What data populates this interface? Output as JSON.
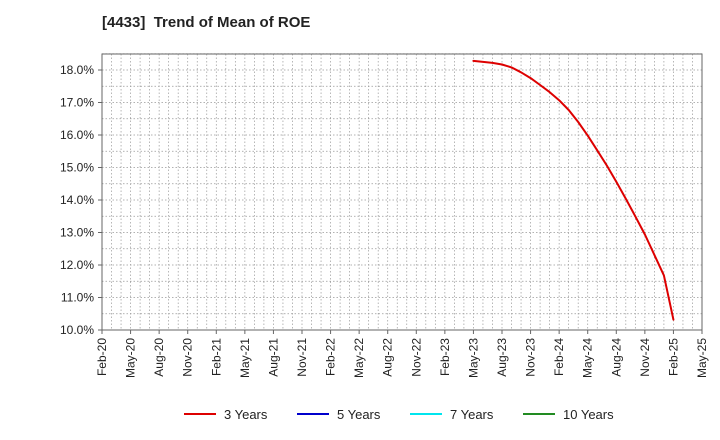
{
  "chart_data": {
    "type": "line",
    "title": "[4433]  Trend of Mean of ROE",
    "xlabel": "",
    "ylabel": "",
    "x_ticks": [
      "Feb-20",
      "May-20",
      "Aug-20",
      "Nov-20",
      "Feb-21",
      "May-21",
      "Aug-21",
      "Nov-21",
      "Feb-22",
      "May-22",
      "Aug-22",
      "Nov-22",
      "Feb-23",
      "May-23",
      "Aug-23",
      "Nov-23",
      "Feb-24",
      "May-24",
      "Aug-24",
      "Nov-24",
      "Feb-25",
      "May-25"
    ],
    "y_ticks": [
      "10.0%",
      "11.0%",
      "12.0%",
      "13.0%",
      "14.0%",
      "15.0%",
      "16.0%",
      "17.0%",
      "18.0%"
    ],
    "ylim": [
      10.0,
      18.5
    ],
    "grid": true,
    "legend_position": "bottom",
    "series": [
      {
        "name": "3 Years",
        "color": "#dd0000",
        "x": [
          "May-23",
          "Jun-23",
          "Jul-23",
          "Aug-23",
          "Sep-23",
          "Oct-23",
          "Nov-23",
          "Dec-23",
          "Jan-24",
          "Feb-24",
          "Mar-24",
          "Apr-24",
          "May-24",
          "Jun-24",
          "Jul-24",
          "Aug-24",
          "Sep-24",
          "Oct-24",
          "Nov-24",
          "Dec-24",
          "Jan-25",
          "Feb-25"
        ],
        "values": [
          18.28,
          18.25,
          18.22,
          18.17,
          18.08,
          17.93,
          17.75,
          17.54,
          17.32,
          17.07,
          16.77,
          16.4,
          15.98,
          15.53,
          15.06,
          14.56,
          14.04,
          13.5,
          12.94,
          12.31,
          11.68,
          10.32
        ]
      },
      {
        "name": "5 Years",
        "color": "#0000cc",
        "x": [],
        "values": []
      },
      {
        "name": "7 Years",
        "color": "#00e5ee",
        "x": [],
        "values": []
      },
      {
        "name": "10 Years",
        "color": "#228b22",
        "x": [],
        "values": []
      }
    ]
  }
}
